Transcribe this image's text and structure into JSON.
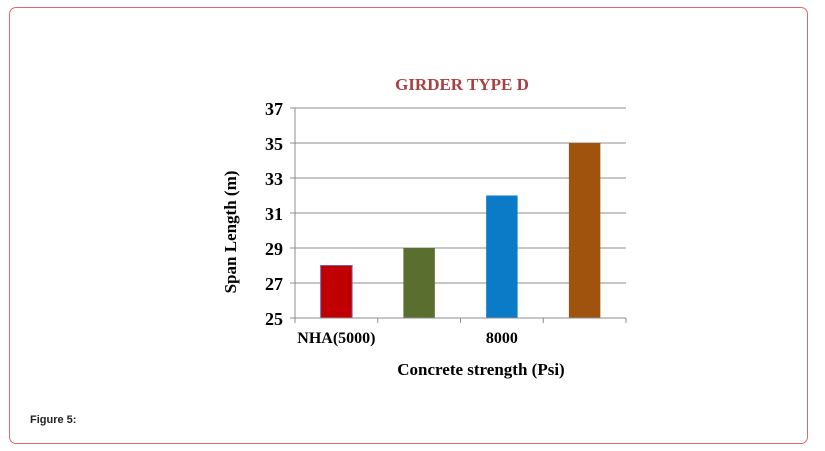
{
  "figure_caption": "Figure 5:",
  "chart_data": {
    "type": "bar",
    "title": "GIRDER TYPE D",
    "xlabel": "Concrete strength (Psi)",
    "ylabel": "Span Length (m)",
    "ylim": [
      25,
      37
    ],
    "yticks": [
      "25",
      "27",
      "29",
      "31",
      "33",
      "35",
      "37"
    ],
    "xtick_labels": [
      "NHA(5000)",
      "",
      "8000",
      ""
    ],
    "categories": [
      "NHA(5000)",
      "",
      "8000",
      ""
    ],
    "values": [
      28,
      29,
      32,
      35
    ],
    "bar_colors": [
      "#c00000",
      "#5a6e2f",
      "#0b7bc8",
      "#a0530c"
    ],
    "grid": true,
    "legend": "none",
    "title_color": "#a84040"
  }
}
